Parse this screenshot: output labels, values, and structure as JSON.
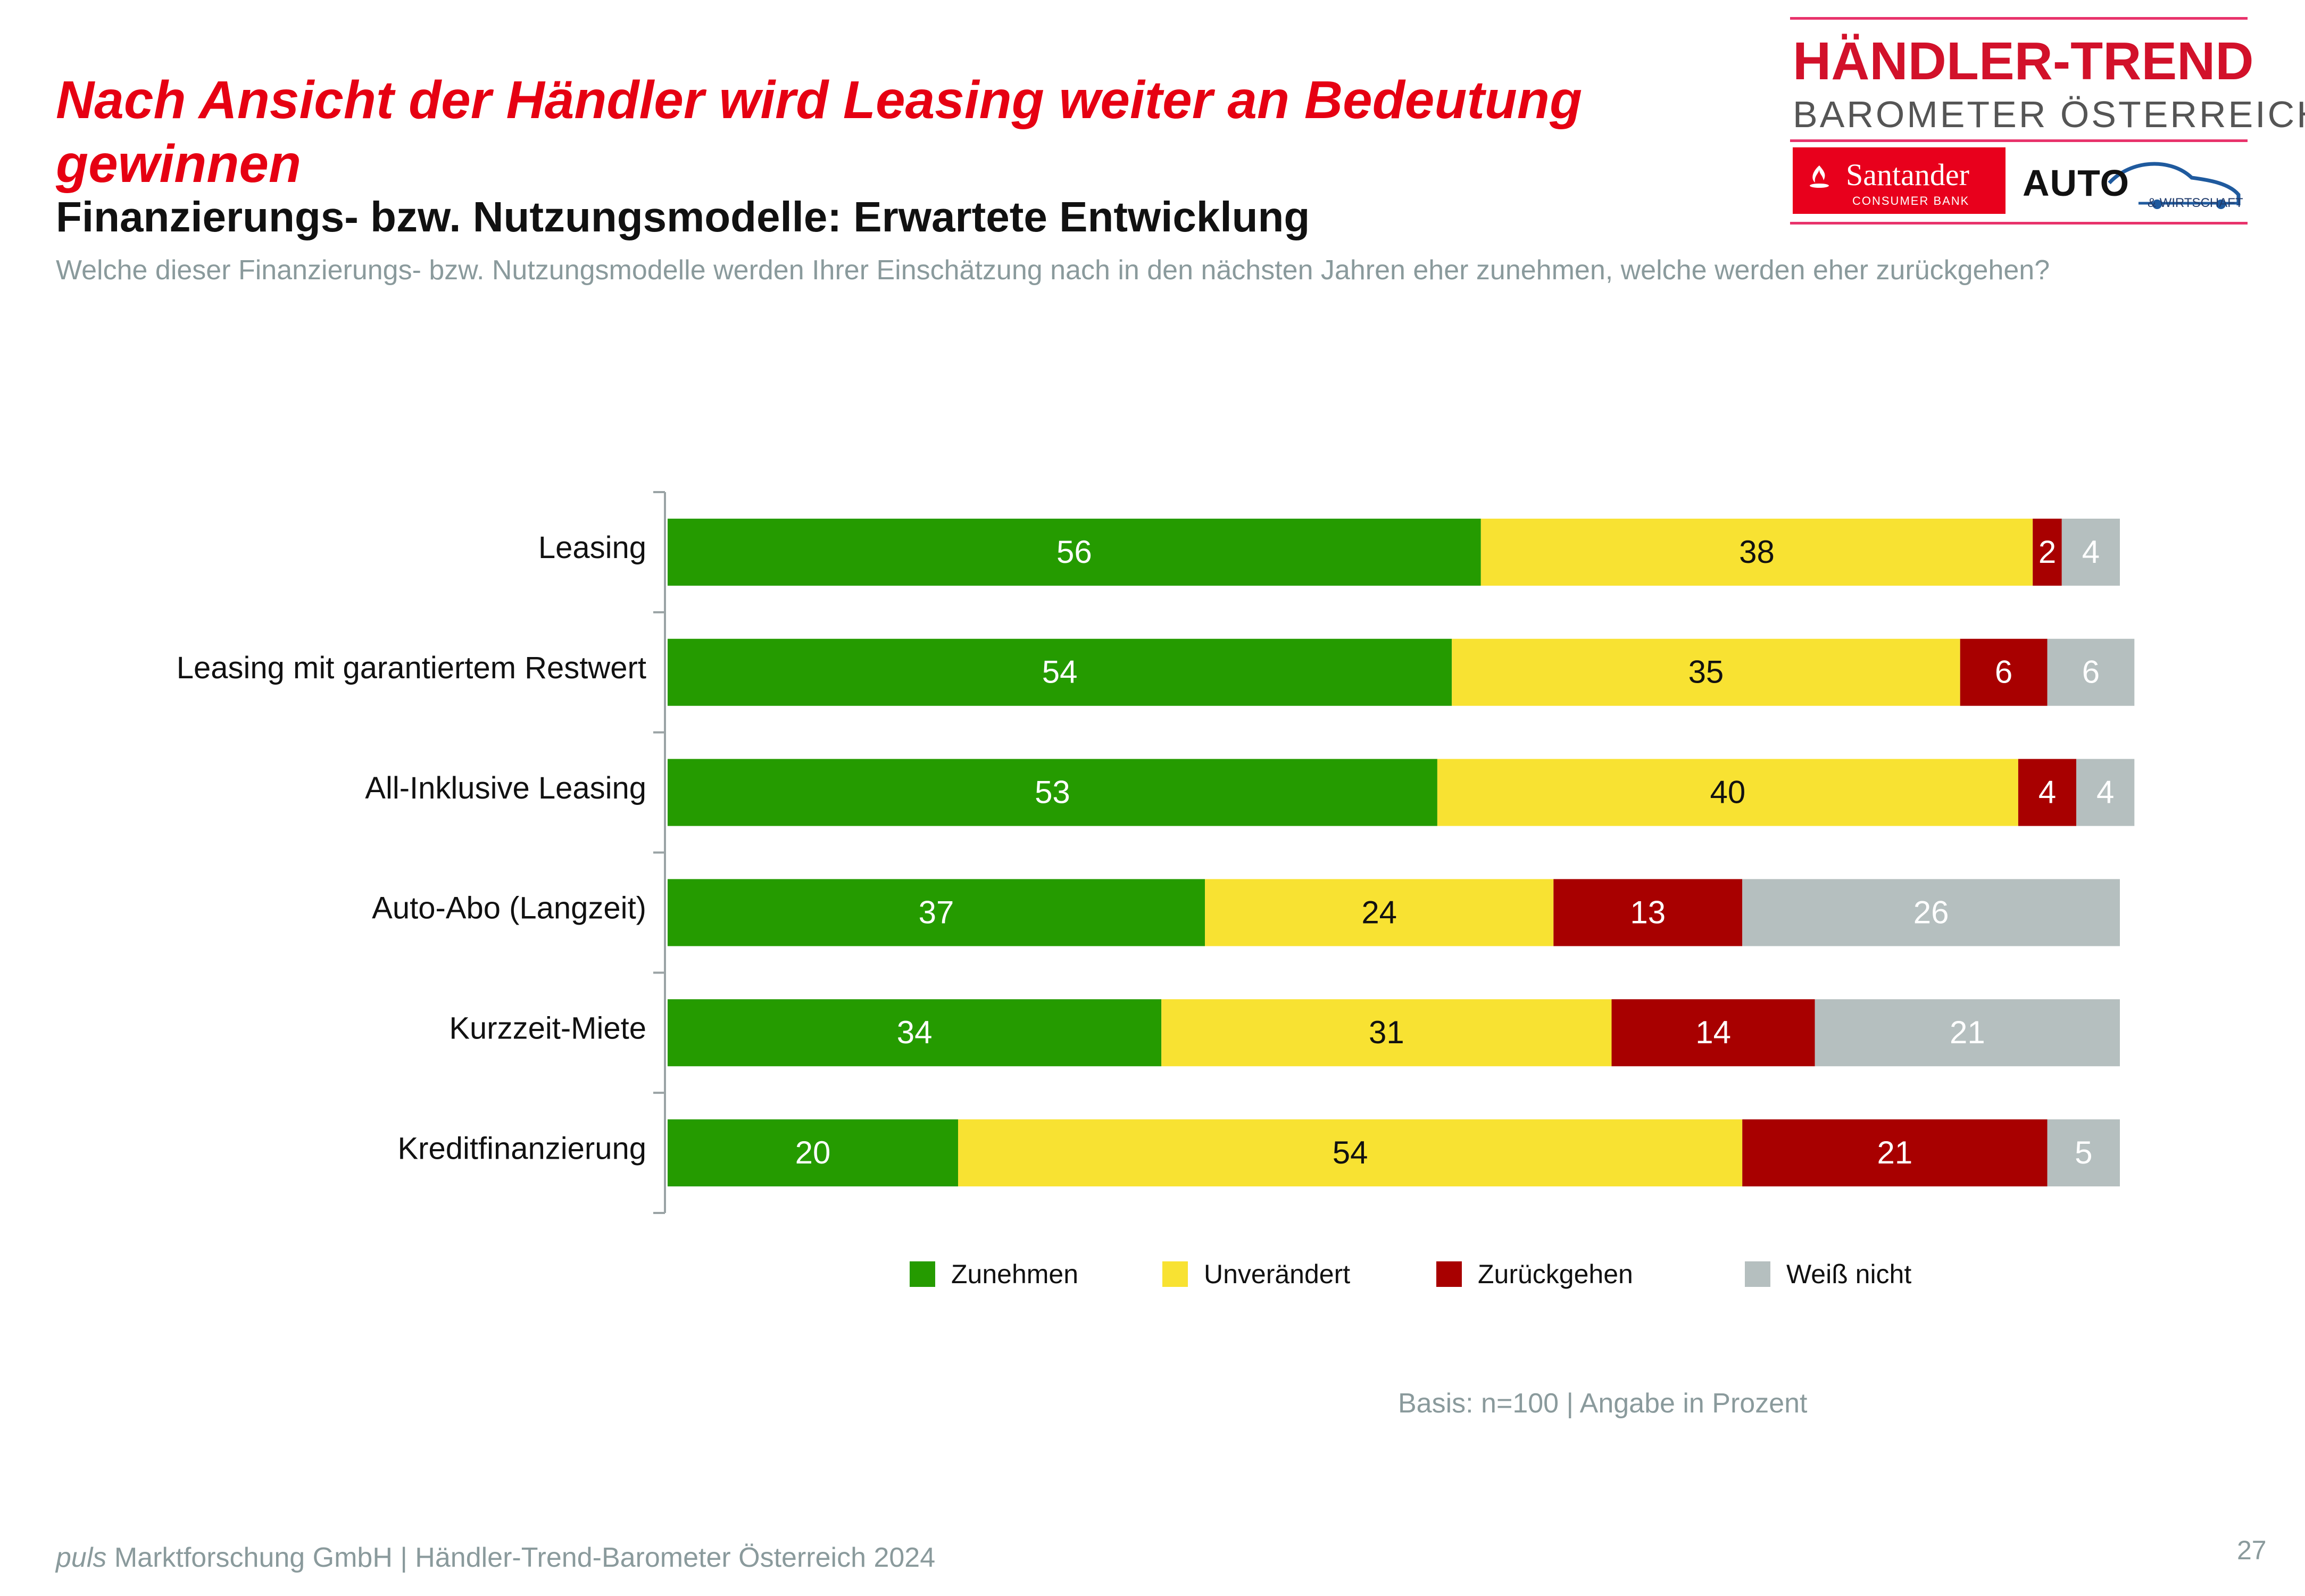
{
  "header": {
    "title": "Nach Ansicht der Händler wird Leasing weiter an Bedeutung gewinnen",
    "subtitle": "Finanzierungs- bzw. Nutzungsmodelle: Erwartete Entwicklung",
    "question": "Welche dieser Finanzierungs- bzw. Nutzungsmodelle werden Ihrer Einschätzung nach in den nächsten Jahren eher zunehmen, welche werden eher zurückgehen?"
  },
  "logo": {
    "title": "HÄNDLER-TREND",
    "subtitle": "BAROMETER ÖSTERREICH",
    "partner1_name": "Santander",
    "partner1_sub": "CONSUMER BANK",
    "partner2_name": "AUTO",
    "partner2_sub": "& WIRTSCHAFT"
  },
  "chart_data": {
    "type": "bar",
    "orientation": "horizontal",
    "stacked": true,
    "categories": [
      "Leasing",
      "Leasing mit garantiertem Restwert",
      "All-Inklusive Leasing",
      "Auto-Abo (Langzeit)",
      "Kurzzeit-Miete",
      "Kreditfinanzierung"
    ],
    "series": [
      {
        "name": "Zunehmen",
        "color": "#259b00",
        "values": [
          56,
          54,
          53,
          37,
          34,
          20
        ]
      },
      {
        "name": "Unverändert",
        "color": "#f8e232",
        "values": [
          38,
          35,
          40,
          24,
          31,
          54
        ]
      },
      {
        "name": "Zurückgehen",
        "color": "#a80000",
        "values": [
          2,
          6,
          4,
          13,
          14,
          21
        ]
      },
      {
        "name": "Weiß nicht",
        "color": "#b5bfbf",
        "values": [
          4,
          6,
          4,
          26,
          21,
          5
        ]
      }
    ],
    "label_colors": [
      "#ffffff",
      "#111111",
      "#ffffff",
      "#ffffff"
    ],
    "xlim": [
      0,
      100
    ],
    "legend_position": "bottom",
    "grid": false
  },
  "notes": {
    "basis": "Basis: n=100 | Angabe in Prozent"
  },
  "footer": {
    "company_italic": "puls",
    "text": " Marktforschung GmbH | Händler-Trend-Barometer Österreich 2024",
    "page_number": "27"
  }
}
